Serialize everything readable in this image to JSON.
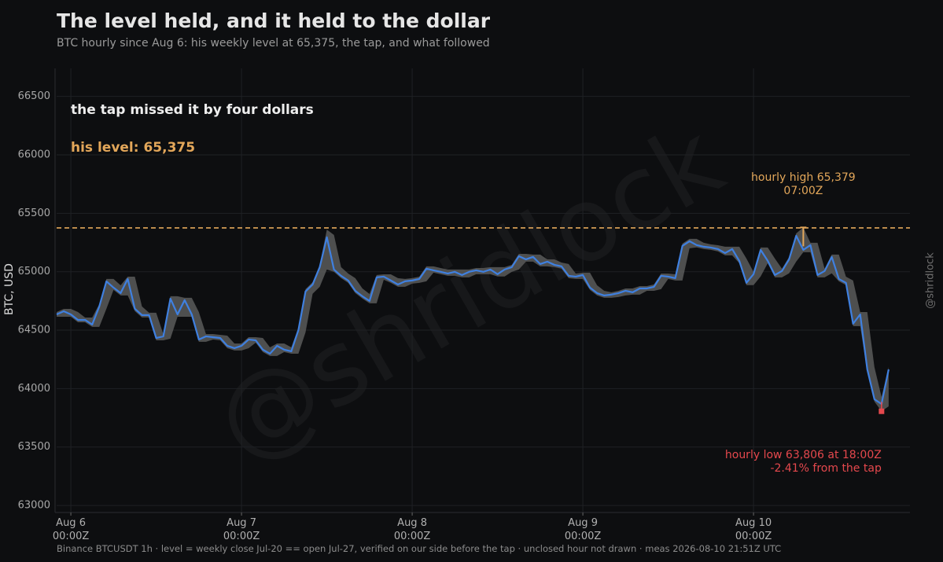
{
  "chart_data": {
    "type": "line",
    "title": "The level held, and it held to the dollar",
    "subtitle": "BTC hourly since Aug 6: his weekly level at 65,375, the tap, and what followed",
    "y_label": "BTC, USD",
    "footer": "Binance BTCUSDT 1h · level = weekly close Jul-20 == open Jul-27, verified on our side before the tap · unclosed hour not drawn · meas 2026-08-10 21:51Z UTC",
    "watermark": "@shridlock",
    "credit": "@shridlock",
    "color": "#3f80e0",
    "band_color": "#5a5a5a",
    "grid": true,
    "xlim": [
      "Aug 5 22:00Z",
      "Aug 10 22:00Z"
    ],
    "ylim": [
      62940,
      66740
    ],
    "yticks": [
      63000,
      63500,
      64000,
      64500,
      65000,
      65500,
      66000,
      66500
    ],
    "xticks": [
      {
        "value": "Aug 6 00:00Z",
        "label": "Aug 6\n00:00Z"
      },
      {
        "value": "Aug 7 00:00Z",
        "label": "Aug 7\n00:00Z"
      },
      {
        "value": "Aug 8 00:00Z",
        "label": "Aug 8\n00:00Z"
      },
      {
        "value": "Aug 9 00:00Z",
        "label": "Aug 9\n00:00Z"
      },
      {
        "value": "Aug 10 00:00Z",
        "label": "Aug 10\n00:00Z"
      }
    ],
    "x": [
      "Aug 5 22:00Z",
      "Aug 5 23:00Z",
      "Aug 6 00:00Z",
      "Aug 6 01:00Z",
      "Aug 6 02:00Z",
      "Aug 6 03:00Z",
      "Aug 6 04:00Z",
      "Aug 6 05:00Z",
      "Aug 6 06:00Z",
      "Aug 6 07:00Z",
      "Aug 6 08:00Z",
      "Aug 6 09:00Z",
      "Aug 6 10:00Z",
      "Aug 6 11:00Z",
      "Aug 6 12:00Z",
      "Aug 6 13:00Z",
      "Aug 6 14:00Z",
      "Aug 6 15:00Z",
      "Aug 6 16:00Z",
      "Aug 6 17:00Z",
      "Aug 6 18:00Z",
      "Aug 6 19:00Z",
      "Aug 6 20:00Z",
      "Aug 6 21:00Z",
      "Aug 6 22:00Z",
      "Aug 6 23:00Z",
      "Aug 7 00:00Z",
      "Aug 7 01:00Z",
      "Aug 7 02:00Z",
      "Aug 7 03:00Z",
      "Aug 7 04:00Z",
      "Aug 7 05:00Z",
      "Aug 7 06:00Z",
      "Aug 7 07:00Z",
      "Aug 7 08:00Z",
      "Aug 7 09:00Z",
      "Aug 7 10:00Z",
      "Aug 7 11:00Z",
      "Aug 7 12:00Z",
      "Aug 7 13:00Z",
      "Aug 7 14:00Z",
      "Aug 7 15:00Z",
      "Aug 7 16:00Z",
      "Aug 7 17:00Z",
      "Aug 7 18:00Z",
      "Aug 7 19:00Z",
      "Aug 7 20:00Z",
      "Aug 7 21:00Z",
      "Aug 7 22:00Z",
      "Aug 7 23:00Z",
      "Aug 8 00:00Z",
      "Aug 8 01:00Z",
      "Aug 8 02:00Z",
      "Aug 8 03:00Z",
      "Aug 8 04:00Z",
      "Aug 8 05:00Z",
      "Aug 8 06:00Z",
      "Aug 8 07:00Z",
      "Aug 8 08:00Z",
      "Aug 8 09:00Z",
      "Aug 8 10:00Z",
      "Aug 8 11:00Z",
      "Aug 8 12:00Z",
      "Aug 8 13:00Z",
      "Aug 8 14:00Z",
      "Aug 8 15:00Z",
      "Aug 8 16:00Z",
      "Aug 8 17:00Z",
      "Aug 8 18:00Z",
      "Aug 8 19:00Z",
      "Aug 8 20:00Z",
      "Aug 8 21:00Z",
      "Aug 8 22:00Z",
      "Aug 8 23:00Z",
      "Aug 9 00:00Z",
      "Aug 9 01:00Z",
      "Aug 9 02:00Z",
      "Aug 9 03:00Z",
      "Aug 9 04:00Z",
      "Aug 9 05:00Z",
      "Aug 9 06:00Z",
      "Aug 9 07:00Z",
      "Aug 9 08:00Z",
      "Aug 9 09:00Z",
      "Aug 9 10:00Z",
      "Aug 9 11:00Z",
      "Aug 9 12:00Z",
      "Aug 9 13:00Z",
      "Aug 9 14:00Z",
      "Aug 9 15:00Z",
      "Aug 9 16:00Z",
      "Aug 9 17:00Z",
      "Aug 9 18:00Z",
      "Aug 9 19:00Z",
      "Aug 9 20:00Z",
      "Aug 9 21:00Z",
      "Aug 9 22:00Z",
      "Aug 9 23:00Z",
      "Aug 10 00:00Z",
      "Aug 10 01:00Z",
      "Aug 10 02:00Z",
      "Aug 10 03:00Z",
      "Aug 10 04:00Z",
      "Aug 10 05:00Z",
      "Aug 10 06:00Z",
      "Aug 10 07:00Z",
      "Aug 10 08:00Z",
      "Aug 10 09:00Z",
      "Aug 10 10:00Z",
      "Aug 10 11:00Z",
      "Aug 10 12:00Z",
      "Aug 10 13:00Z",
      "Aug 10 14:00Z",
      "Aug 10 15:00Z",
      "Aug 10 16:00Z",
      "Aug 10 17:00Z",
      "Aug 10 18:00Z",
      "Aug 10 19:00Z"
    ],
    "close": [
      64635,
      64662,
      64635,
      64588,
      64588,
      64548,
      64703,
      64918,
      64864,
      64817,
      64938,
      64683,
      64629,
      64629,
      64433,
      64447,
      64770,
      64635,
      64757,
      64635,
      64420,
      64447,
      64440,
      64433,
      64366,
      64346,
      64366,
      64420,
      64413,
      64333,
      64299,
      64366,
      64333,
      64319,
      64501,
      64831,
      64891,
      65039,
      65295,
      65019,
      64965,
      64925,
      64837,
      64790,
      64750,
      64952,
      64958,
      64925,
      64891,
      64918,
      64925,
      64938,
      65026,
      65012,
      64999,
      64985,
      64999,
      64972,
      64999,
      65012,
      64999,
      65019,
      64979,
      65019,
      65039,
      65133,
      65106,
      65127,
      65066,
      65086,
      65059,
      65046,
      64965,
      64958,
      64972,
      64864,
      64817,
      64797,
      64804,
      64817,
      64837,
      64824,
      64857,
      64857,
      64871,
      64965,
      64958,
      64945,
      65221,
      65261,
      65228,
      65214,
      65207,
      65194,
      65160,
      65194,
      65093,
      64905,
      64979,
      65187,
      65093,
      64972,
      65006,
      65106,
      65308,
      65187,
      65228,
      64972,
      65006,
      65127,
      64938,
      64905,
      64555,
      64635,
      64164,
      63909,
      63868,
      64164
    ],
    "high": [
      64655,
      64682,
      64682,
      64655,
      64608,
      64608,
      64723,
      64938,
      64938,
      64884,
      64958,
      64958,
      64703,
      64649,
      64649,
      64467,
      64790,
      64790,
      64777,
      64777,
      64655,
      64467,
      64467,
      64460,
      64453,
      64386,
      64386,
      64440,
      64440,
      64433,
      64353,
      64386,
      64386,
      64353,
      64521,
      64851,
      64911,
      65059,
      65360,
      65315,
      65039,
      64985,
      64945,
      64857,
      64810,
      64972,
      64978,
      64978,
      64945,
      64938,
      64945,
      64958,
      65046,
      65046,
      65032,
      65019,
      65019,
      65019,
      65019,
      65032,
      65032,
      65039,
      65039,
      65039,
      65059,
      65153,
      65153,
      65147,
      65147,
      65106,
      65106,
      65079,
      65066,
      64985,
      64992,
      64992,
      64884,
      64837,
      64824,
      64837,
      64857,
      64857,
      64877,
      64877,
      64891,
      64985,
      64985,
      64978,
      65241,
      65281,
      65281,
      65248,
      65234,
      65227,
      65214,
      65214,
      65214,
      65113,
      64999,
      65207,
      65207,
      65113,
      65026,
      65126,
      65328,
      65379,
      65248,
      65248,
      65026,
      65147,
      65147,
      64958,
      64925,
      64655,
      64655,
      64184,
      63929,
      64184
    ],
    "low": [
      64615,
      64615,
      64615,
      64568,
      64568,
      64528,
      64528,
      64683,
      64844,
      64797,
      64797,
      64663,
      64609,
      64609,
      64413,
      64413,
      64427,
      64615,
      64615,
      64615,
      64400,
      64400,
      64420,
      64413,
      64346,
      64326,
      64326,
      64346,
      64393,
      64313,
      64279,
      64279,
      64313,
      64299,
      64299,
      64481,
      64811,
      64871,
      65019,
      64999,
      64945,
      64905,
      64817,
      64770,
      64730,
      64730,
      64932,
      64905,
      64871,
      64871,
      64898,
      64905,
      64918,
      64992,
      64979,
      64965,
      64965,
      64952,
      64952,
      64979,
      64979,
      64979,
      64959,
      64959,
      64999,
      65019,
      65086,
      65086,
      65046,
      65046,
      65039,
      65026,
      64945,
      64938,
      64938,
      64844,
      64797,
      64777,
      64777,
      64784,
      64797,
      64804,
      64804,
      64837,
      64837,
      64851,
      64938,
      64925,
      64925,
      65201,
      65208,
      65194,
      65187,
      65174,
      65140,
      65140,
      65073,
      64885,
      64885,
      64959,
      65073,
      64952,
      64952,
      64986,
      65086,
      65167,
      65167,
      64952,
      64952,
      64986,
      64918,
      64885,
      64535,
      64535,
      64144,
      63889,
      63806,
      63848
    ],
    "annotations": {
      "level": 65375,
      "level_color": "#e3a75a",
      "level_label": "his level: 65,375",
      "note": "the tap missed it by four dollars",
      "high": {
        "x": "Aug 10 07:00Z",
        "value": 65379,
        "label": "hourly high 65,379\n07:00Z",
        "color": "#e3a75a"
      },
      "low": {
        "x": "Aug 10 18:00Z",
        "value": 63806,
        "label": "hourly low 63,806 at 18:00Z\n-2.41% from the tap",
        "color": "#e5484d"
      }
    }
  }
}
